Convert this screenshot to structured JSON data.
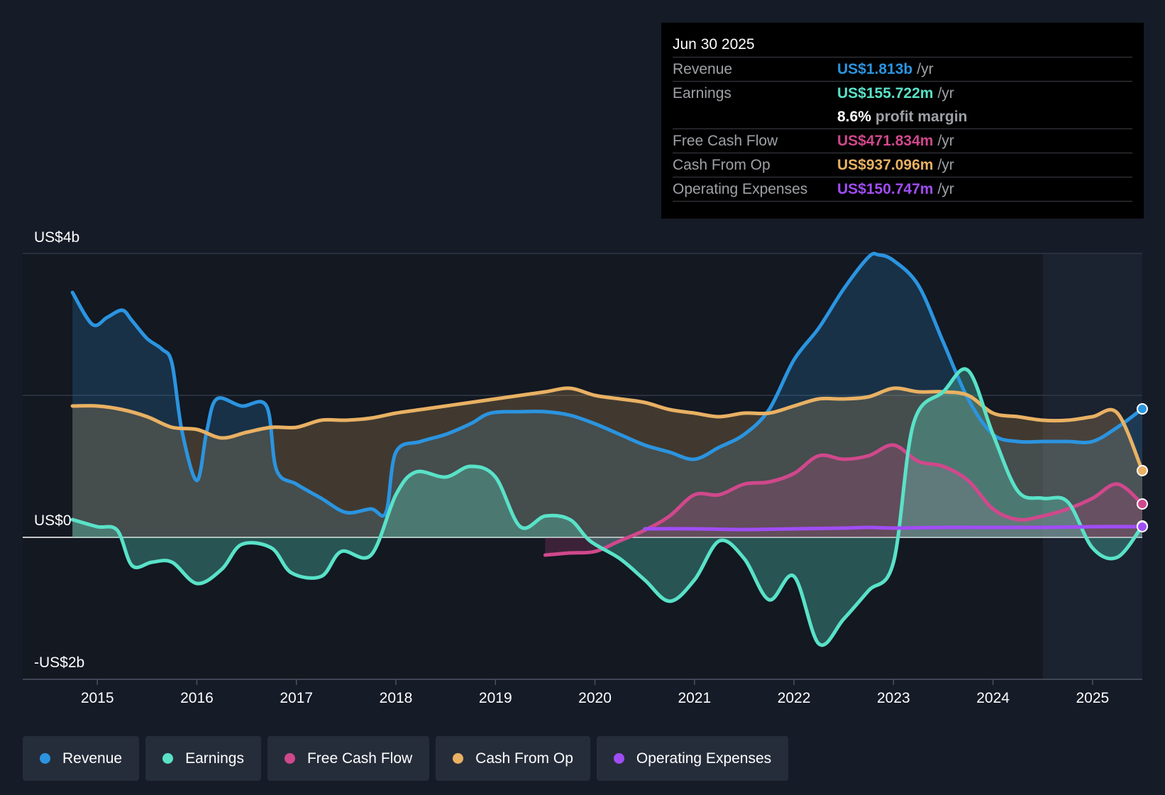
{
  "tooltip": {
    "date": "Jun 30 2025",
    "rows": [
      {
        "label": "Revenue",
        "value": "US$1.813b",
        "unit": "/yr",
        "color": "#2b94e0"
      },
      {
        "label": "Earnings",
        "value": "US$155.722m",
        "unit": "/yr",
        "color": "#59e2c8"
      },
      {
        "label": "",
        "value": "8.6%",
        "unit": "profit margin",
        "color": "#ffffff"
      },
      {
        "label": "Free Cash Flow",
        "value": "US$471.834m",
        "unit": "/yr",
        "color": "#d0488c"
      },
      {
        "label": "Cash From Op",
        "value": "US$937.096m",
        "unit": "/yr",
        "color": "#e9b163"
      },
      {
        "label": "Operating Expenses",
        "value": "US$150.747m",
        "unit": "/yr",
        "color": "#a04df5"
      }
    ]
  },
  "legend": [
    {
      "label": "Revenue",
      "color": "#2b94e0"
    },
    {
      "label": "Earnings",
      "color": "#59e2c8"
    },
    {
      "label": "Free Cash Flow",
      "color": "#d0488c"
    },
    {
      "label": "Cash From Op",
      "color": "#e9b163"
    },
    {
      "label": "Operating Expenses",
      "color": "#a04df5"
    }
  ],
  "chart_data": {
    "type": "line",
    "title": "",
    "xlabel": "",
    "ylabel": "",
    "ylim": [
      -2.0,
      4.0
    ],
    "xlim": [
      2014.25,
      2025.5
    ],
    "y_tick_labels": [
      {
        "value": 4,
        "label": "US$4b"
      },
      {
        "value": 0,
        "label": "US$0"
      },
      {
        "value": -2,
        "label": "-US$2b"
      }
    ],
    "x_ticks": [
      2015,
      2016,
      2017,
      2018,
      2019,
      2020,
      2021,
      2022,
      2023,
      2024,
      2025
    ],
    "x_tick_labels": [
      "2015",
      "2016",
      "2017",
      "2018",
      "2019",
      "2020",
      "2021",
      "2022",
      "2023",
      "2024",
      "2025"
    ],
    "forecast_start": 2024.5,
    "series": [
      {
        "name": "Revenue",
        "color": "#2b94e0",
        "fill": true,
        "x": [
          2014.75,
          2014.95,
          2015.1,
          2015.25,
          2015.35,
          2015.5,
          2015.65,
          2015.75,
          2015.85,
          2016.0,
          2016.1,
          2016.2,
          2016.45,
          2016.7,
          2016.8,
          2017.0,
          2017.25,
          2017.5,
          2017.75,
          2017.9,
          2018.0,
          2018.25,
          2018.5,
          2018.75,
          2018.95,
          2019.25,
          2019.5,
          2019.75,
          2020.0,
          2020.25,
          2020.5,
          2020.75,
          2021.0,
          2021.25,
          2021.5,
          2021.75,
          2022.0,
          2022.25,
          2022.5,
          2022.75,
          2022.85,
          2023.0,
          2023.25,
          2023.5,
          2023.75,
          2024.0,
          2024.25,
          2024.5,
          2024.75,
          2025.0,
          2025.25,
          2025.5
        ],
        "values": [
          3.45,
          3.0,
          3.1,
          3.2,
          3.05,
          2.8,
          2.65,
          2.45,
          1.5,
          0.8,
          1.5,
          1.95,
          1.85,
          1.85,
          0.95,
          0.75,
          0.55,
          0.35,
          0.4,
          0.35,
          1.2,
          1.35,
          1.45,
          1.6,
          1.75,
          1.77,
          1.77,
          1.72,
          1.6,
          1.45,
          1.3,
          1.2,
          1.1,
          1.27,
          1.45,
          1.8,
          2.5,
          2.95,
          3.5,
          3.95,
          3.98,
          3.9,
          3.55,
          2.75,
          1.95,
          1.45,
          1.35,
          1.35,
          1.35,
          1.35,
          1.55,
          1.81
        ]
      },
      {
        "name": "Earnings",
        "color": "#59e2c8",
        "fill": true,
        "x": [
          2014.75,
          2015.0,
          2015.2,
          2015.35,
          2015.55,
          2015.75,
          2016.0,
          2016.25,
          2016.45,
          2016.75,
          2016.95,
          2017.25,
          2017.45,
          2017.75,
          2018.0,
          2018.2,
          2018.5,
          2018.75,
          2019.0,
          2019.25,
          2019.5,
          2019.75,
          2019.95,
          2020.25,
          2020.5,
          2020.75,
          2021.0,
          2021.25,
          2021.5,
          2021.75,
          2022.0,
          2022.25,
          2022.5,
          2022.75,
          2023.0,
          2023.2,
          2023.5,
          2023.75,
          2024.0,
          2024.25,
          2024.5,
          2024.75,
          2025.0,
          2025.25,
          2025.5
        ],
        "values": [
          0.25,
          0.15,
          0.1,
          -0.4,
          -0.35,
          -0.35,
          -0.65,
          -0.45,
          -0.1,
          -0.15,
          -0.5,
          -0.55,
          -0.2,
          -0.25,
          0.6,
          0.92,
          0.85,
          1.0,
          0.85,
          0.15,
          0.3,
          0.25,
          -0.05,
          -0.3,
          -0.6,
          -0.9,
          -0.6,
          -0.05,
          -0.3,
          -0.88,
          -0.55,
          -1.5,
          -1.15,
          -0.75,
          -0.35,
          1.6,
          2.05,
          2.35,
          1.45,
          0.65,
          0.55,
          0.5,
          -0.15,
          -0.28,
          0.16
        ]
      },
      {
        "name": "Free Cash Flow",
        "color": "#d0488c",
        "fill": true,
        "x": [
          2019.5,
          2019.75,
          2020.0,
          2020.25,
          2020.5,
          2020.75,
          2021.0,
          2021.25,
          2021.5,
          2021.75,
          2022.0,
          2022.25,
          2022.5,
          2022.75,
          2023.0,
          2023.25,
          2023.5,
          2023.75,
          2024.0,
          2024.25,
          2024.5,
          2024.75,
          2025.0,
          2025.25,
          2025.5
        ],
        "values": [
          -0.25,
          -0.22,
          -0.2,
          -0.05,
          0.1,
          0.3,
          0.6,
          0.6,
          0.75,
          0.78,
          0.9,
          1.15,
          1.1,
          1.15,
          1.3,
          1.07,
          1.0,
          0.8,
          0.4,
          0.25,
          0.3,
          0.4,
          0.55,
          0.75,
          0.47
        ]
      },
      {
        "name": "Cash From Op",
        "color": "#e9b163",
        "fill": true,
        "x": [
          2014.75,
          2015.0,
          2015.25,
          2015.5,
          2015.75,
          2016.0,
          2016.25,
          2016.5,
          2016.75,
          2017.0,
          2017.25,
          2017.5,
          2017.75,
          2018.0,
          2018.25,
          2018.5,
          2018.75,
          2019.0,
          2019.25,
          2019.5,
          2019.75,
          2020.0,
          2020.25,
          2020.5,
          2020.75,
          2021.0,
          2021.25,
          2021.5,
          2021.75,
          2022.0,
          2022.25,
          2022.5,
          2022.75,
          2023.0,
          2023.25,
          2023.5,
          2023.75,
          2024.0,
          2024.25,
          2024.5,
          2024.75,
          2025.0,
          2025.25,
          2025.5
        ],
        "values": [
          1.85,
          1.85,
          1.8,
          1.7,
          1.55,
          1.52,
          1.4,
          1.48,
          1.55,
          1.55,
          1.65,
          1.65,
          1.68,
          1.75,
          1.8,
          1.85,
          1.9,
          1.95,
          2.0,
          2.05,
          2.1,
          2.0,
          1.95,
          1.9,
          1.8,
          1.75,
          1.7,
          1.75,
          1.75,
          1.85,
          1.95,
          1.95,
          1.98,
          2.1,
          2.05,
          2.05,
          2.0,
          1.75,
          1.7,
          1.65,
          1.65,
          1.7,
          1.75,
          0.94
        ]
      },
      {
        "name": "Operating Expenses",
        "color": "#a04df5",
        "fill": false,
        "x": [
          2020.5,
          2021.0,
          2021.5,
          2022.0,
          2022.5,
          2022.75,
          2023.0,
          2023.5,
          2024.0,
          2024.5,
          2025.0,
          2025.5
        ],
        "values": [
          0.12,
          0.12,
          0.11,
          0.12,
          0.13,
          0.14,
          0.13,
          0.14,
          0.14,
          0.14,
          0.15,
          0.15
        ]
      }
    ]
  }
}
